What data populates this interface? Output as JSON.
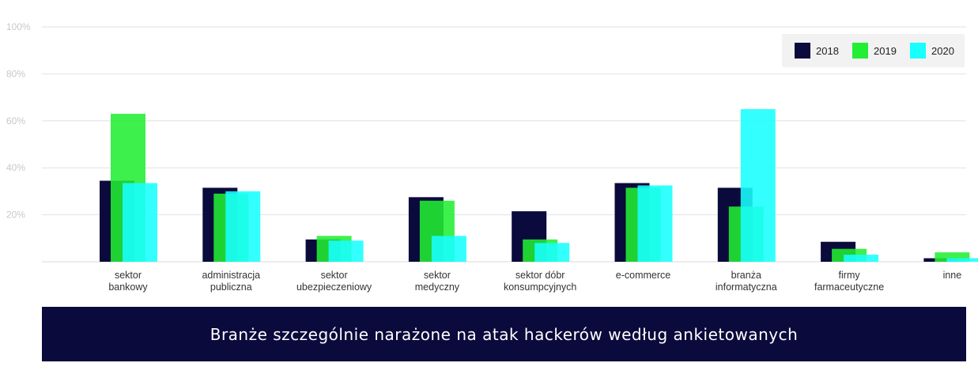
{
  "chart_data": {
    "type": "bar",
    "title": "Branże szczególnie narażone na atak hackerów według ankietowanych",
    "categories": [
      [
        "sektor",
        "bankowy"
      ],
      [
        "administracja",
        "publiczna"
      ],
      [
        "sektor",
        "ubezpieczeniowy"
      ],
      [
        "sektor",
        "medyczny"
      ],
      [
        "sektor dóbr",
        "konsumpcyjnych"
      ],
      [
        "e-commerce"
      ],
      [
        "branża",
        "informatyczna"
      ],
      [
        "firmy",
        "farmaceutyczne"
      ],
      [
        "inne"
      ]
    ],
    "series": [
      {
        "name": "2018",
        "color": "#0a0a3c",
        "values": [
          34.5,
          31.5,
          9.5,
          27.5,
          21.5,
          33.5,
          31.5,
          8.5,
          1.5
        ]
      },
      {
        "name": "2019",
        "color": "#22ee33",
        "values": [
          63,
          29,
          11,
          26,
          9.5,
          31.5,
          23.5,
          5.5,
          4
        ]
      },
      {
        "name": "2020",
        "color": "#18ffff",
        "values": [
          33.5,
          30,
          9,
          11,
          8,
          32.5,
          65,
          3,
          1.5
        ]
      }
    ],
    "ylim": [
      0,
      100
    ],
    "yticks": [
      20,
      40,
      60,
      80,
      100
    ],
    "ytick_labels": [
      "20%",
      "40%",
      "60%",
      "80%",
      "100%"
    ],
    "grid": true,
    "legend_position": "top-right"
  }
}
